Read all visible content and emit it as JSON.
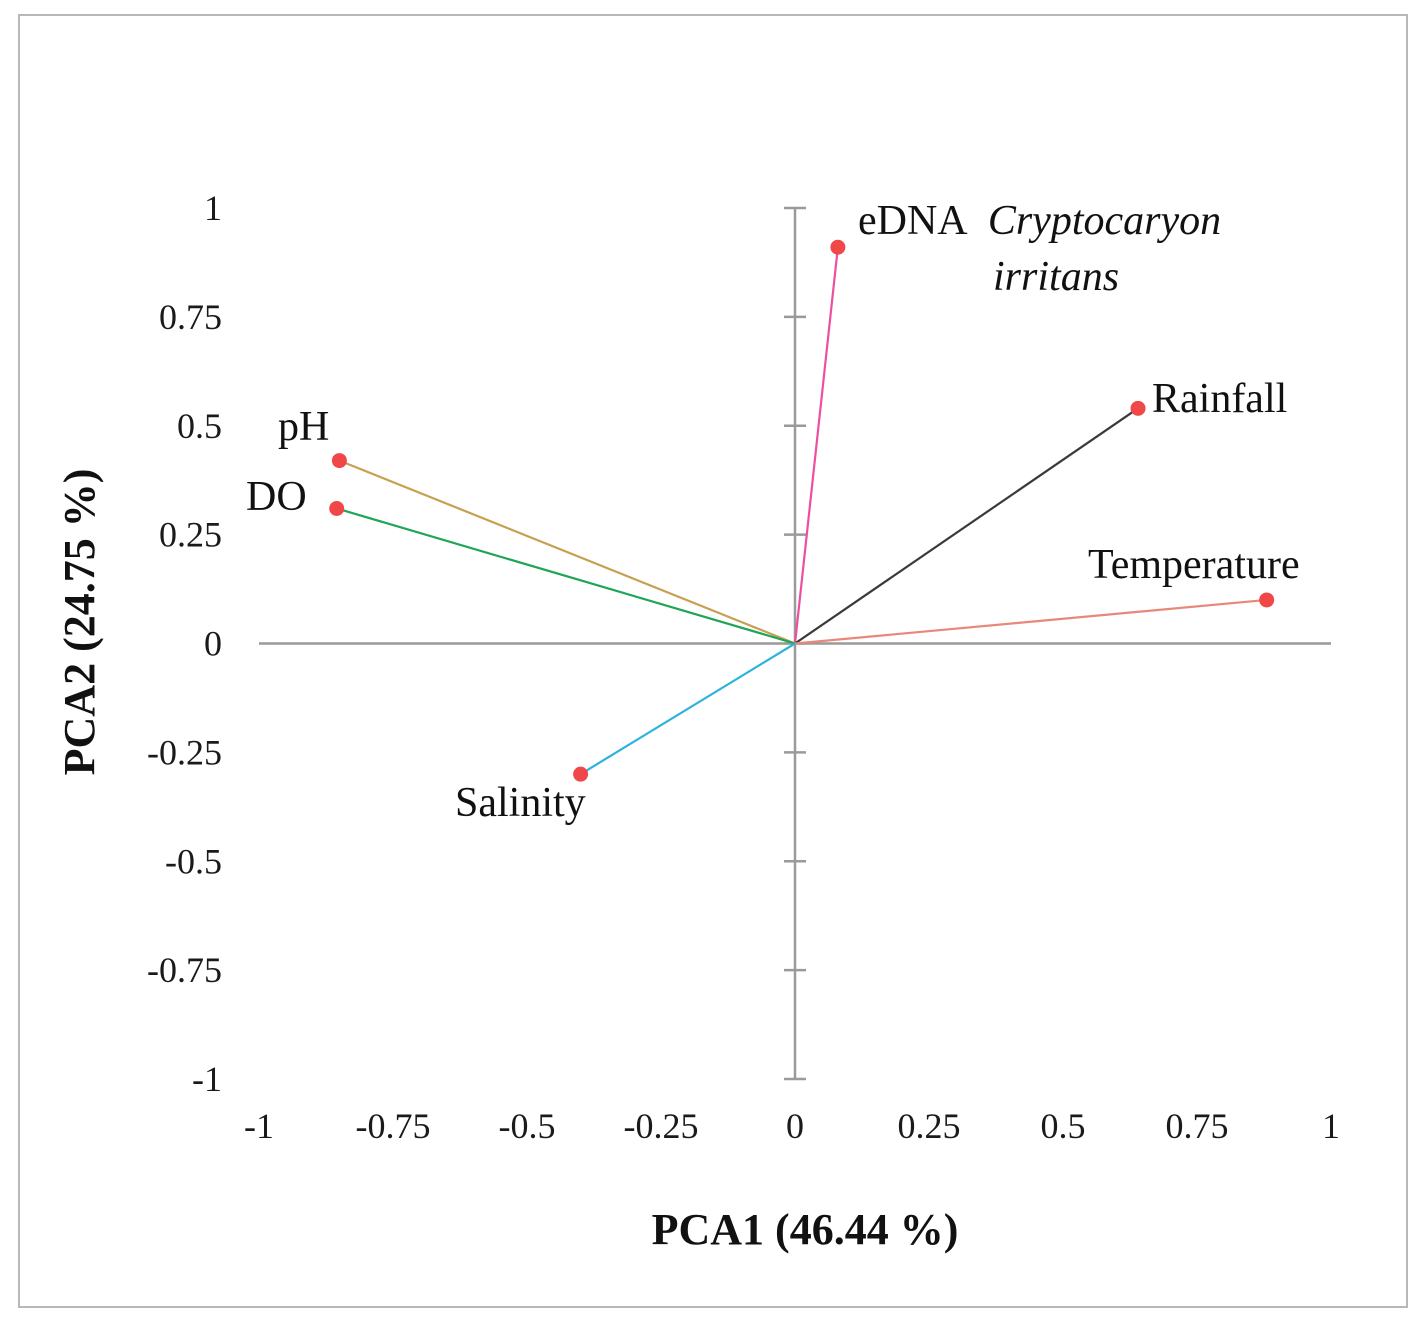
{
  "chart_data": {
    "type": "scatter",
    "subtype": "pca-loading-plot",
    "title": "",
    "xlabel": "PCA1 (46.44 %)",
    "ylabel": "PCA2 (24.75 %)",
    "xlim": [
      -1,
      1
    ],
    "ylim": [
      -1,
      1
    ],
    "x_ticks": [
      -1,
      -0.75,
      -0.5,
      -0.25,
      0,
      0.25,
      0.5,
      0.75,
      1
    ],
    "y_ticks": [
      -1,
      -0.75,
      -0.5,
      -0.25,
      0,
      0.25,
      0.5,
      0.75,
      1
    ],
    "x_tick_labels": [
      "-1",
      "-0.75",
      "-0.5",
      "-0.25",
      "0",
      "0.25",
      "0.5",
      "0.75",
      "1"
    ],
    "y_tick_labels": [
      "-1",
      "-0.75",
      "-0.5",
      "-0.25",
      "0",
      "0.25",
      "0.5",
      "0.75",
      "1"
    ],
    "grid": false,
    "point_color": "#f04848",
    "axis_color": "#9a9a9a",
    "series": [
      {
        "key": "edna",
        "name": "eDNA Cryptocaryon irritans",
        "label_plain": "eDNA",
        "label_italic_1": "Cryptocaryon",
        "label_italic_2": "irritans",
        "x": 0.08,
        "y": 0.91,
        "color": "#ec4fa0"
      },
      {
        "key": "rainfall",
        "name": "Rainfall",
        "x": 0.64,
        "y": 0.54,
        "color": "#3a3a3a"
      },
      {
        "key": "temperature",
        "name": "Temperature",
        "x": 0.88,
        "y": 0.1,
        "color": "#e8887a"
      },
      {
        "key": "ph",
        "name": "pH",
        "x": -0.85,
        "y": 0.42,
        "color": "#c7a052"
      },
      {
        "key": "do",
        "name": "DO",
        "x": -0.855,
        "y": 0.31,
        "color": "#1fa555"
      },
      {
        "key": "salinity",
        "name": "Salinity",
        "x": -0.4,
        "y": -0.3,
        "color": "#2ab3de"
      }
    ]
  }
}
